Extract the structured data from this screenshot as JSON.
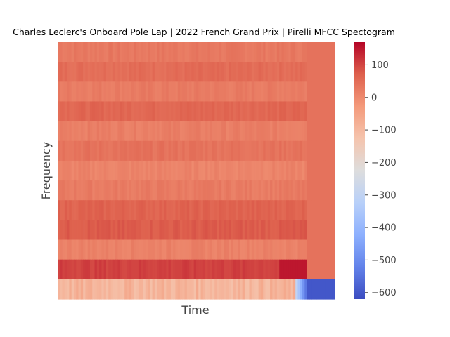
{
  "chart_data": {
    "type": "heatmap",
    "title": "Charles Leclerc's Onboard Pole Lap | 2022 French Grand Prix | Pirelli MFCC Spectogram",
    "xlabel": "Time",
    "ylabel": "Frequency",
    "colormap": "coolwarm",
    "colorbar": {
      "vmin": -620,
      "vmax": 170,
      "ticks": [
        100,
        0,
        -100,
        -200,
        -300,
        -400,
        -500,
        -600
      ],
      "tick_labels": [
        "100",
        "0",
        "−100",
        "−200",
        "−300",
        "−400",
        "−500",
        "−600"
      ]
    },
    "grid": false,
    "time_frames": 120,
    "active_frames": 108,
    "coefficients": [
      {
        "index": 13,
        "active_mean": 30,
        "tail": 40
      },
      {
        "index": 12,
        "active_mean": 50,
        "tail": 40
      },
      {
        "index": 11,
        "active_mean": 25,
        "tail": 40
      },
      {
        "index": 10,
        "active_mean": 60,
        "tail": 40
      },
      {
        "index": 9,
        "active_mean": 20,
        "tail": 40
      },
      {
        "index": 8,
        "active_mean": 40,
        "tail": 40
      },
      {
        "index": 7,
        "active_mean": 10,
        "tail": 40
      },
      {
        "index": 6,
        "active_mean": 25,
        "tail": 40
      },
      {
        "index": 5,
        "active_mean": 65,
        "tail": 40
      },
      {
        "index": 4,
        "active_mean": 75,
        "tail": 40
      },
      {
        "index": 3,
        "active_mean": 15,
        "tail": 40
      },
      {
        "index": 2,
        "active_mean": 105,
        "tail": 40
      },
      {
        "index": 1,
        "active_mean": -90,
        "tail": -600
      }
    ],
    "colors": {
      "cool_end": "#3b4cc0",
      "mid": "#dddddd",
      "warm_end": "#b40426"
    }
  }
}
